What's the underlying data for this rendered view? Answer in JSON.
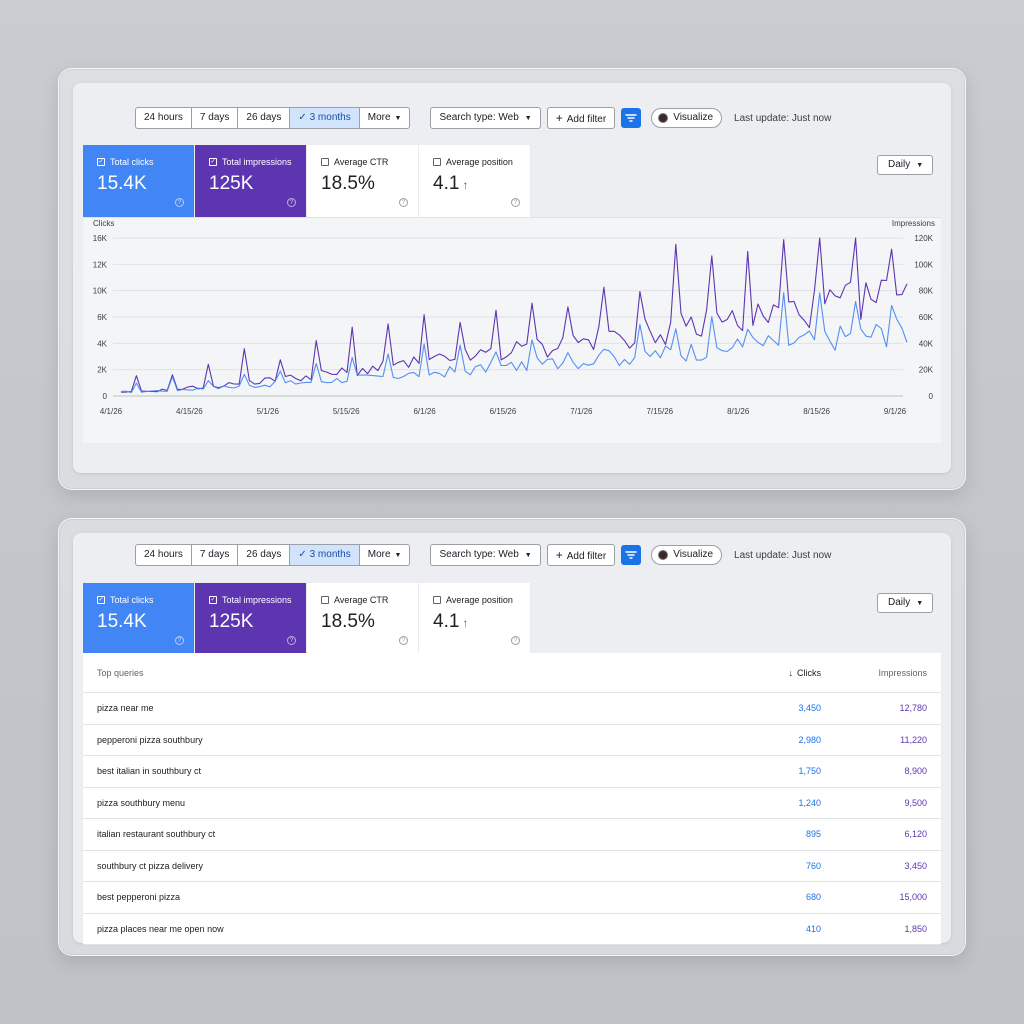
{
  "toolbar": {
    "ranges": [
      {
        "label": "24 hours",
        "active": false
      },
      {
        "label": "7 days",
        "active": false
      },
      {
        "label": "26 days",
        "active": false
      },
      {
        "label": "3 months",
        "active": true
      },
      {
        "label": "More",
        "active": false
      }
    ],
    "search_type": "Search type: Web",
    "add_filter": "Add filter",
    "visualize": "Visualize",
    "last_update": "Last update: Just now"
  },
  "metrics": {
    "clicks": {
      "label": "Total clicks",
      "value": "15.4K"
    },
    "impressions": {
      "label": "Total impressions",
      "value": "125K"
    },
    "ctr": {
      "label": "Average CTR",
      "value": "18.5%"
    },
    "position": {
      "label": "Average position",
      "value": "4.1"
    }
  },
  "granularity": "Daily",
  "colors": {
    "clicks": "#4285f4",
    "impressions": "#5e35b1",
    "active_range": "#d2e3fc",
    "accent": "#1a73e8",
    "trend_up": "#1e8e3e"
  },
  "chart_data": {
    "type": "line",
    "ylabel": "Clicks",
    "y2label": "Impressions",
    "ylim": [
      0,
      16000
    ],
    "y2lim": [
      0,
      120000
    ],
    "y_ticks": [
      "0",
      "2K",
      "4K",
      "6K",
      "10K",
      "12K",
      "16K"
    ],
    "y2_ticks": [
      "0",
      "20K",
      "40K",
      "60K",
      "80K",
      "100K",
      "120K"
    ],
    "x_ticks": [
      "4/1/26",
      "4/15/26",
      "5/1/26",
      "5/15/26",
      "6/1/26",
      "6/15/26",
      "7/1/26",
      "7/15/26",
      "8/1/26",
      "8/15/26",
      "9/1/26"
    ],
    "grid": true,
    "series": [
      {
        "name": "Clicks",
        "color": "#4285f4",
        "start_values": [
          300,
          600,
          900,
          700,
          1000
        ],
        "end_values": [
          6400,
          9000,
          8800,
          7800,
          9400
        ],
        "trend": "rising with weekly spikes"
      },
      {
        "name": "Impressions",
        "color": "#5e35b1",
        "start_values": [
          2000,
          3500,
          5000,
          4000,
          6000
        ],
        "end_values": [
          90000,
          112000,
          100000,
          115000,
          96000
        ],
        "trend": "rising with weekly spikes"
      }
    ]
  },
  "table": {
    "headers": {
      "query": "Top queries",
      "clicks": "Clicks",
      "impressions": "Impressions"
    },
    "rows": [
      {
        "query": "pizza near me",
        "clicks": "3,450",
        "impressions": "12,780"
      },
      {
        "query": "pepperoni pizza southbury",
        "clicks": "2,980",
        "impressions": "11,220"
      },
      {
        "query": "best italian in southbury ct",
        "clicks": "1,750",
        "impressions": "8,900"
      },
      {
        "query": "pizza southbury menu",
        "clicks": "1,240",
        "impressions": "9,500"
      },
      {
        "query": "italian restaurant southbury ct",
        "clicks": "895",
        "impressions": "6,120"
      },
      {
        "query": "southbury ct pizza delivery",
        "clicks": "760",
        "impressions": "3,450"
      },
      {
        "query": "best pepperoni pizza",
        "clicks": "680",
        "impressions": "15,000"
      },
      {
        "query": "pizza places near me open now",
        "clicks": "410",
        "impressions": "1,850"
      }
    ]
  }
}
